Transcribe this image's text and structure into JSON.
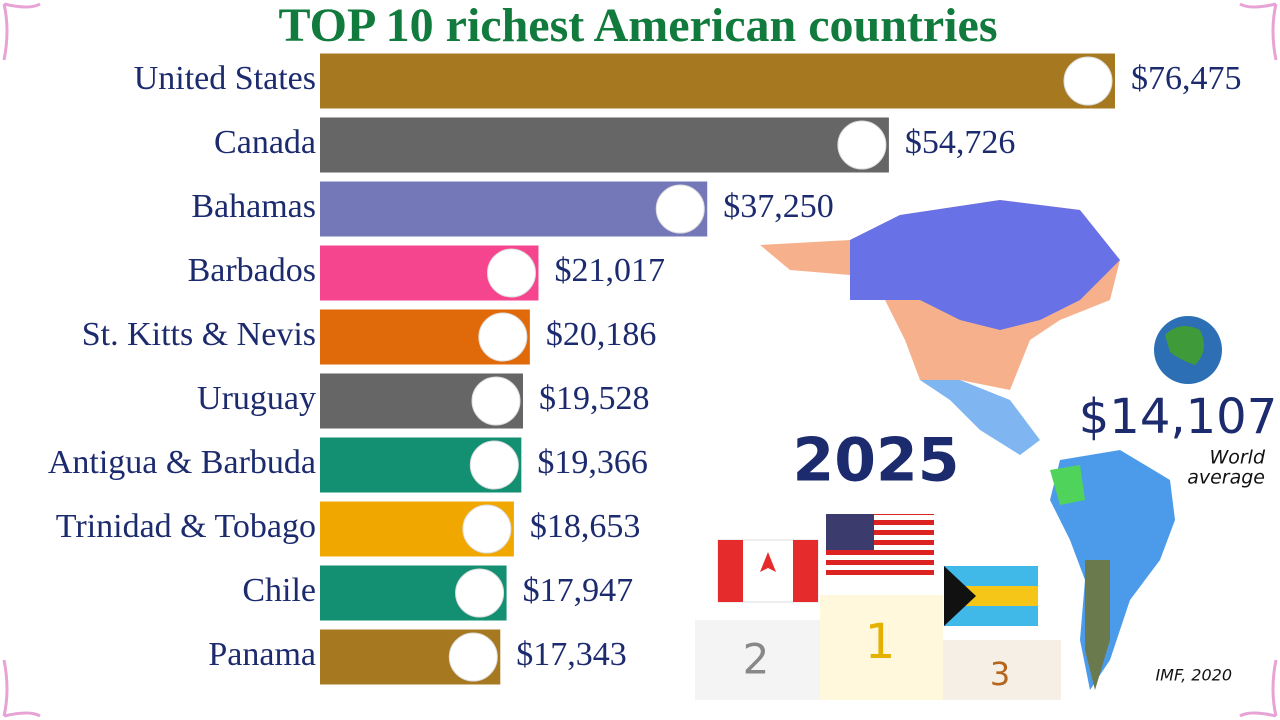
{
  "chart_data": {
    "type": "hbar",
    "title": "TOP 10 richest American countries",
    "categories": [
      "United States",
      "Canada",
      "Bahamas",
      "Barbados",
      "St. Kitts & Nevis",
      "Uruguay",
      "Antigua & Barbuda",
      "Trinidad & Tobago",
      "Chile",
      "Panama"
    ],
    "values": [
      76475,
      54726,
      37250,
      21017,
      20186,
      19528,
      19366,
      18653,
      17947,
      17343
    ],
    "value_labels": [
      "$76,475",
      "$54,726",
      "$37,250",
      "$21,017",
      "$20,186",
      "$19,528",
      "$19,366",
      "$18,653",
      "$17,947",
      "$17,343"
    ],
    "colors": [
      "#a67820",
      "#666666",
      "#7478b8",
      "#f5458f",
      "#e06a0a",
      "#666666",
      "#138f72",
      "#f0a800",
      "#138f72",
      "#a67820"
    ],
    "year": "2025",
    "world_average": "$14,107",
    "world_average_label": [
      "World",
      "average"
    ],
    "podium_labels": [
      "2",
      "1",
      "3"
    ],
    "source": "IMF, 2020"
  }
}
